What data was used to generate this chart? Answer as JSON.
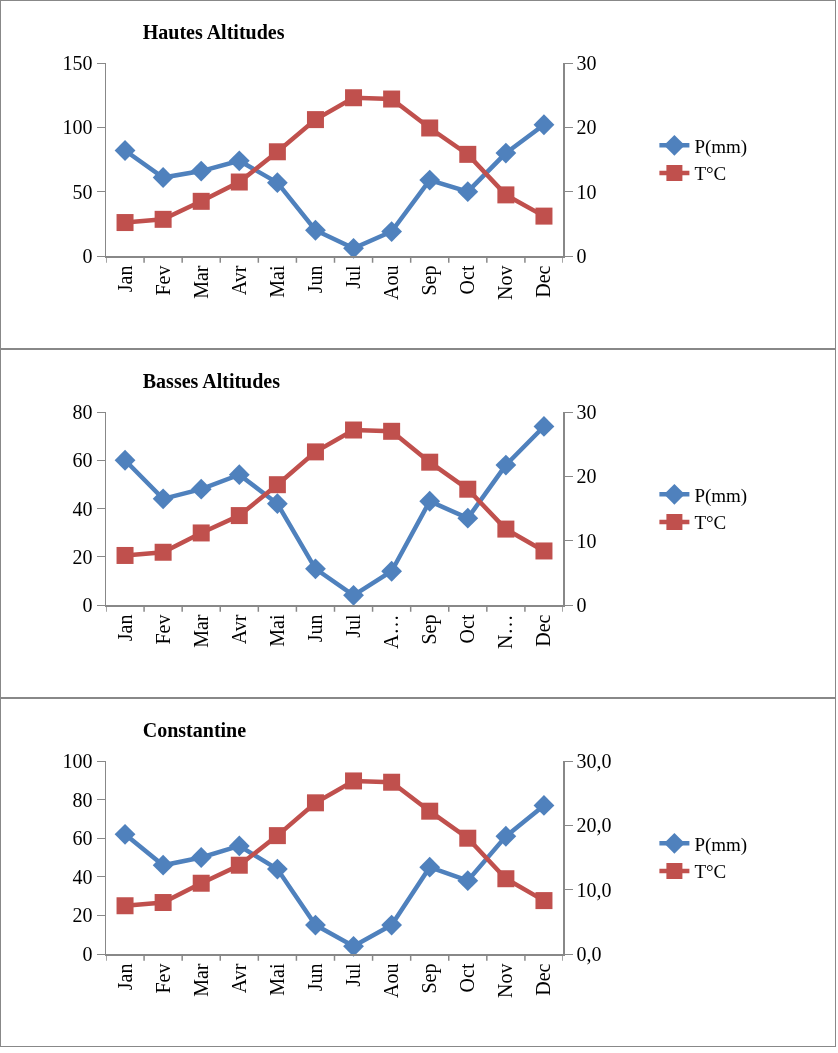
{
  "chart_data": [
    {
      "type": "line",
      "title": "Hautes Altitudes",
      "categories": [
        "Jan",
        "Fev",
        "Mar",
        "Avr",
        "Mai",
        "Jun",
        "Jul",
        "Aou",
        "Sep",
        "Oct",
        "Nov",
        "Dec"
      ],
      "series": [
        {
          "name": "P(mm)",
          "color": "#4f81bd",
          "marker": "diamond",
          "values": [
            82,
            61,
            66,
            74,
            57,
            20,
            6,
            19,
            59,
            50,
            80,
            102
          ]
        },
        {
          "name": "T°C",
          "color": "#c0504d",
          "marker": "square",
          "axis": "y2",
          "values": [
            5.2,
            5.7,
            8.5,
            11.5,
            16.2,
            21.2,
            24.6,
            24.4,
            19.9,
            15.8,
            9.5,
            6.2
          ]
        }
      ],
      "ylim": [
        0,
        150
      ],
      "yticks": [
        0,
        50,
        100,
        150
      ],
      "y2lim": [
        0,
        30
      ],
      "y2ticks": [
        0,
        10,
        20,
        30
      ],
      "grid": false,
      "legend": "right"
    },
    {
      "type": "line",
      "title": "Basses Altitudes",
      "categories": [
        "Jan",
        "Fev",
        "Mar",
        "Avr",
        "Mai",
        "Jun",
        "Jul",
        "A…",
        "Sep",
        "Oct",
        "N…",
        "Dec"
      ],
      "series": [
        {
          "name": "P(mm)",
          "color": "#4f81bd",
          "marker": "diamond",
          "values": [
            60,
            44,
            48,
            54,
            42,
            15,
            4,
            14,
            43,
            36,
            58,
            74
          ]
        },
        {
          "name": "T°C",
          "color": "#c0504d",
          "marker": "square",
          "axis": "y2",
          "values": [
            7.7,
            8.2,
            11.2,
            13.9,
            18.7,
            23.8,
            27.2,
            27,
            22.2,
            18,
            11.8,
            8.4
          ]
        }
      ],
      "ylim": [
        0,
        80
      ],
      "yticks": [
        0,
        20,
        40,
        60,
        80
      ],
      "y2lim": [
        0,
        30
      ],
      "y2ticks": [
        0,
        10,
        20,
        30
      ],
      "grid": false,
      "legend": "right"
    },
    {
      "type": "line",
      "title": "Constantine",
      "categories": [
        "Jan",
        "Fev",
        "Mar",
        "Avr",
        "Mai",
        "Jun",
        "Jul",
        "Aou",
        "Sep",
        "Oct",
        "Nov",
        "Dec"
      ],
      "series": [
        {
          "name": "P(mm)",
          "color": "#4f81bd",
          "marker": "diamond",
          "values": [
            62,
            46,
            50,
            56,
            44,
            15,
            4,
            15,
            45,
            38,
            61,
            77
          ]
        },
        {
          "name": "T°C",
          "color": "#c0504d",
          "marker": "square",
          "axis": "y2",
          "values": [
            7.5,
            8,
            11,
            13.8,
            18.4,
            23.5,
            26.9,
            26.7,
            22.2,
            18,
            11.7,
            8.3
          ]
        }
      ],
      "ylim": [
        0,
        100
      ],
      "yticks": [
        0,
        20,
        40,
        60,
        80,
        100
      ],
      "y2lim": [
        0,
        30
      ],
      "y2ticks": [
        {
          "value": 0,
          "label": "0,0"
        },
        {
          "value": 10,
          "label": "10,0"
        },
        {
          "value": 20,
          "label": "20,0"
        },
        {
          "value": 30,
          "label": "30,0"
        }
      ],
      "grid": false,
      "legend": "right"
    }
  ]
}
